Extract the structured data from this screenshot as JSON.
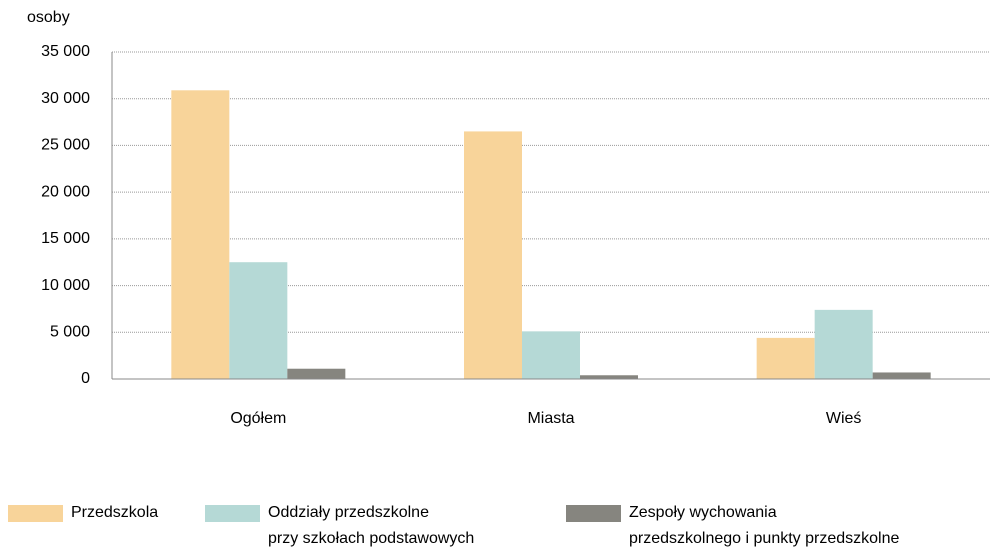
{
  "chart_data": {
    "type": "bar",
    "y_label": "osoby",
    "categories": [
      "Ogółem",
      "Miasta",
      "Wieś"
    ],
    "series": [
      {
        "name": "Przedszkola",
        "color": "#f8d49a",
        "values": [
          30900,
          26500,
          4400
        ]
      },
      {
        "name": "Oddziały przedszkolne\nprzy szkołach podstawowych",
        "color": "#b5d9d6",
        "values": [
          12500,
          5100,
          7400
        ]
      },
      {
        "name": "Zespoły wychowania\nprzedszkolnego i punkty przedszkolne",
        "color": "#86857f",
        "values": [
          1100,
          400,
          700
        ]
      }
    ],
    "ylim": [
      0,
      35000
    ],
    "yticks": [
      0,
      {
        "value": 5000,
        "label": "5 000"
      },
      {
        "value": 10000,
        "label": "10 000"
      },
      {
        "value": 15000,
        "label": "15 000"
      },
      {
        "value": 20000,
        "label": "20 000"
      },
      {
        "value": 25000,
        "label": "25 000"
      },
      {
        "value": 30000,
        "label": "30 000"
      },
      {
        "value": 35000,
        "label": "35 000"
      }
    ],
    "grid": true
  }
}
